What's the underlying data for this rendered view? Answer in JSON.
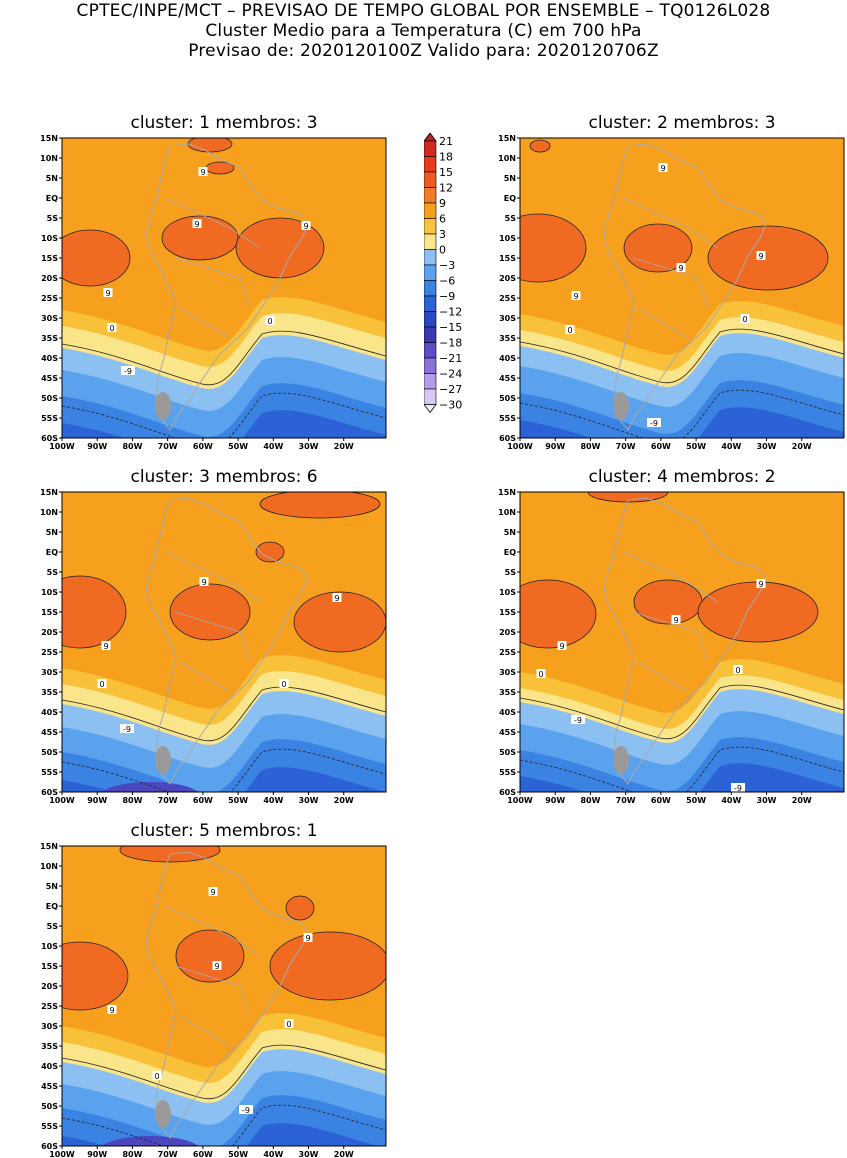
{
  "header": {
    "line1": "CPTEC/INPE/MCT – PREVISAO DE TEMPO GLOBAL POR ENSEMBLE – TQ0126L028",
    "line2": "Cluster Medio para a Temperatura (C) em 700 hPa",
    "line3": "Previsao de: 2020120100Z   Valido para: 2020120706Z"
  },
  "axes": {
    "lat_labels": [
      "15N",
      "10N",
      "5N",
      "EQ",
      "5S",
      "10S",
      "15S",
      "20S",
      "25S",
      "30S",
      "35S",
      "40S",
      "45S",
      "50S",
      "55S",
      "60S"
    ],
    "lon_labels": [
      "100W",
      "90W",
      "80W",
      "70W",
      "60W",
      "50W",
      "40W",
      "30W",
      "20W"
    ]
  },
  "colorbar": {
    "labels": [
      "21",
      "18",
      "15",
      "12",
      "9",
      "6",
      "3",
      "0",
      "-3",
      "-6",
      "-9",
      "-12",
      "-15",
      "-18",
      "-21",
      "-24",
      "-27",
      "-30"
    ],
    "colors": [
      "#b5261e",
      "#d2291f",
      "#e63b19",
      "#ef5a1e",
      "#f47b26",
      "#f7a01e",
      "#f9c43d",
      "#fbe58a",
      "#8dc0f2",
      "#5aa2ee",
      "#3b83e3",
      "#2b63d6",
      "#2a48c6",
      "#3a38b4",
      "#5e4cc4",
      "#8a73d8",
      "#b29de6",
      "#d6c9f2",
      "#f1ecfb"
    ]
  },
  "clusters": [
    {
      "title": "cluster: 1   membros: 3",
      "labels": [
        "9",
        "9",
        "9",
        "9",
        "0",
        "0",
        "-9"
      ]
    },
    {
      "title": "cluster: 2   membros: 3",
      "labels": [
        "9",
        "9",
        "9",
        "9",
        "0",
        "0",
        "-9"
      ]
    },
    {
      "title": "cluster: 3   membros: 6",
      "labels": [
        "9",
        "9",
        "9",
        "0",
        "0",
        "-9"
      ]
    },
    {
      "title": "cluster: 4   membros: 2",
      "labels": [
        "9",
        "9",
        "9",
        "0",
        "0",
        "-9",
        "-9"
      ]
    },
    {
      "title": "cluster: 5   membros: 1",
      "labels": [
        "9",
        "9",
        "9",
        "9",
        "0",
        "0",
        "-9"
      ]
    }
  ]
}
